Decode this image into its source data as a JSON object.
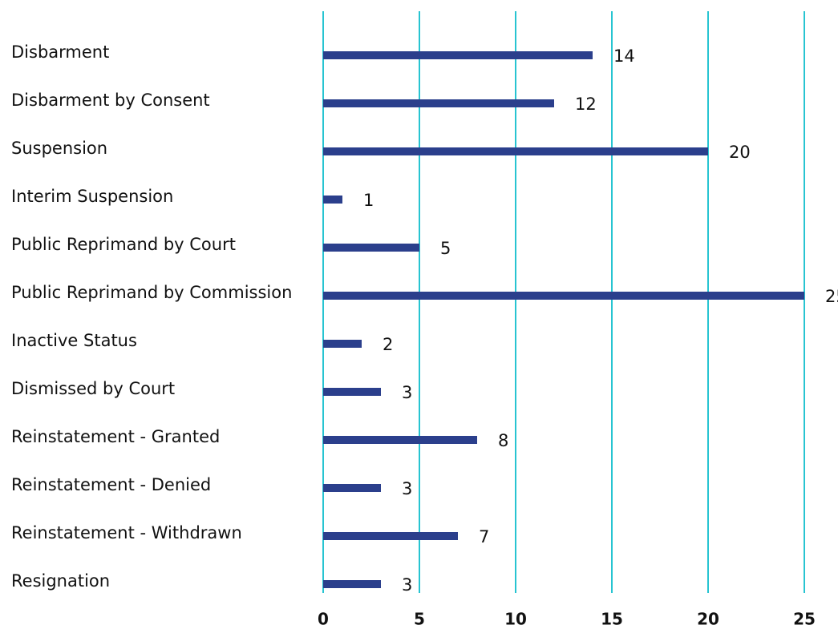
{
  "chart_data": {
    "type": "barh",
    "categories": [
      "Disbarment",
      "Disbarment by Consent",
      "Suspension",
      "Interim Suspension",
      "Public Reprimand by Court",
      "Public Reprimand by Commission",
      "Inactive Status",
      "Dismissed by Court",
      "Reinstatement - Granted",
      "Reinstatement - Denied",
      "Reinstatement - Withdrawn",
      "Resignation"
    ],
    "values": [
      14,
      12,
      20,
      1,
      5,
      25,
      2,
      3,
      8,
      3,
      7,
      3
    ],
    "color": "#2b3f8c",
    "grid_color": "#27c4d1",
    "xlim": [
      0,
      25
    ],
    "xticks": [
      0,
      5,
      10,
      15,
      20,
      25
    ],
    "grid": true
  }
}
